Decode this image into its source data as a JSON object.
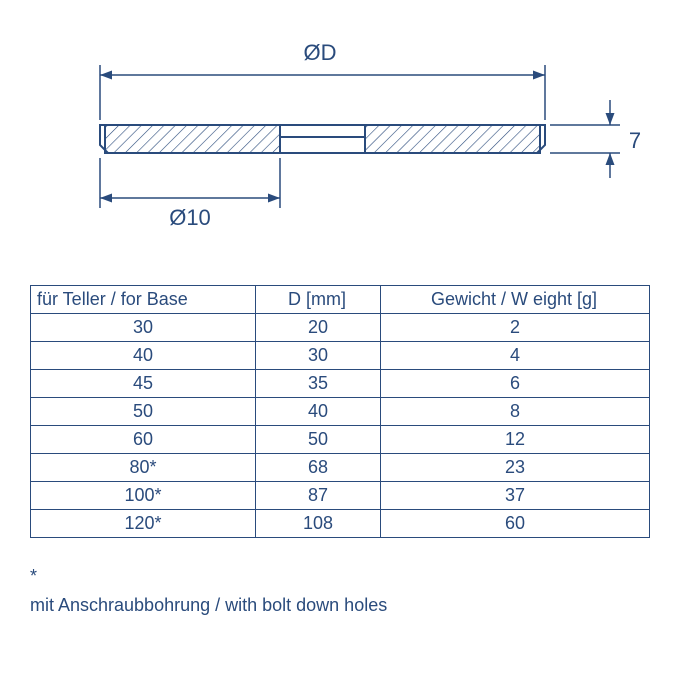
{
  "diagram": {
    "stroke": "#2a4b7c",
    "stroke_width": 1.5,
    "hatch_color": "#2a4b7c",
    "background": "#ffffff",
    "label_D": "ØD",
    "label_d10": "Ø10",
    "label_h": "7",
    "font_size": 20
  },
  "table": {
    "columns": [
      "für Teller / for Base",
      "D [mm]",
      "Gewicht / W eight [g]"
    ],
    "rows": [
      [
        "30",
        "20",
        "2"
      ],
      [
        "40",
        "30",
        "4"
      ],
      [
        "45",
        "35",
        "6"
      ],
      [
        "50",
        "40",
        "8"
      ],
      [
        "60",
        "50",
        "12"
      ],
      [
        "80*",
        "68",
        "23"
      ],
      [
        "100*",
        "87",
        "37"
      ],
      [
        "120*",
        "108",
        "60"
      ]
    ]
  },
  "footnote": {
    "star": "*",
    "text": "mit Anschraubbohrung / with bolt down holes"
  }
}
